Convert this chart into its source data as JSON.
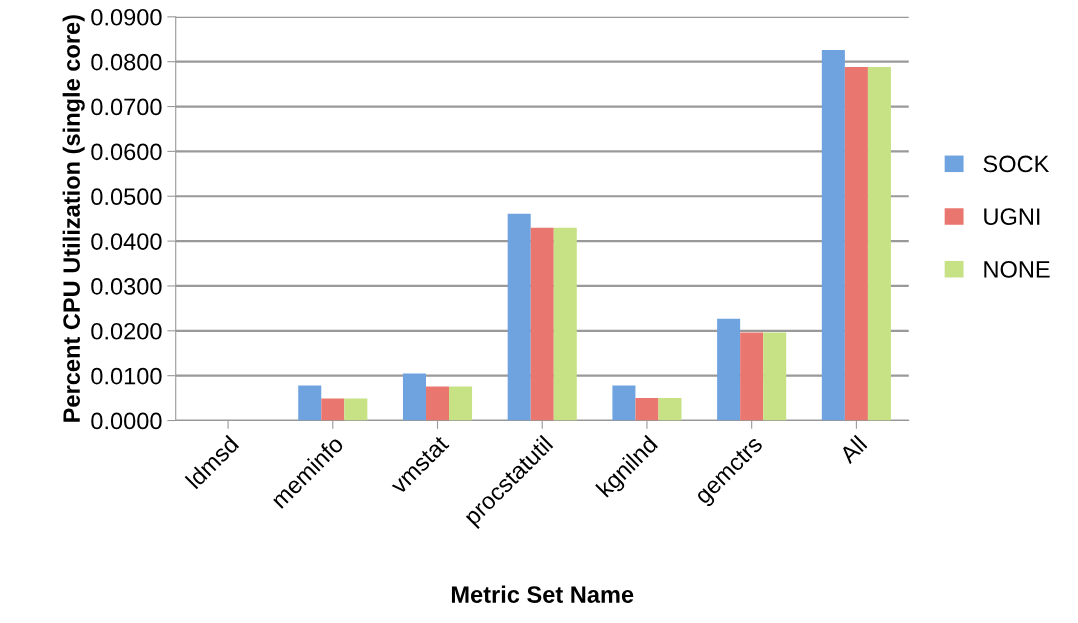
{
  "chart_data": {
    "type": "bar",
    "xlabel": "Metric Set Name",
    "ylabel": "Percent CPU Utilization (single core)",
    "categories": [
      "ldmsd",
      "meminfo",
      "vmstat",
      "procstatutil",
      "kgnilnd",
      "gemctrs",
      "All"
    ],
    "series": [
      {
        "name": "SOCK",
        "color": "#6fa3e0",
        "values": [
          0,
          0.0078,
          0.0105,
          0.0461,
          0.0078,
          0.0227,
          0.0826
        ]
      },
      {
        "name": "UGNI",
        "color": "#e9776f",
        "values": [
          0,
          0.0049,
          0.0076,
          0.043,
          0.005,
          0.0196,
          0.0788
        ]
      },
      {
        "name": "NONE",
        "color": "#c6e285",
        "values": [
          0,
          0.0049,
          0.0076,
          0.043,
          0.005,
          0.0196,
          0.0788
        ]
      }
    ],
    "ylim": [
      0,
      0.09
    ],
    "yticks": [
      {
        "value": 0,
        "label": "0.0000"
      },
      {
        "value": 0.01,
        "label": "0.0100"
      },
      {
        "value": 0.02,
        "label": "0.0200"
      },
      {
        "value": 0.03,
        "label": "0.0300"
      },
      {
        "value": 0.04,
        "label": "0.0400"
      },
      {
        "value": 0.05,
        "label": "0.0500"
      },
      {
        "value": 0.06,
        "label": "0.0600"
      },
      {
        "value": 0.07,
        "label": "0.0700"
      },
      {
        "value": 0.08,
        "label": "0.0800"
      },
      {
        "value": 0.09,
        "label": "0.0900"
      }
    ],
    "grid": "y",
    "legend": "right"
  }
}
